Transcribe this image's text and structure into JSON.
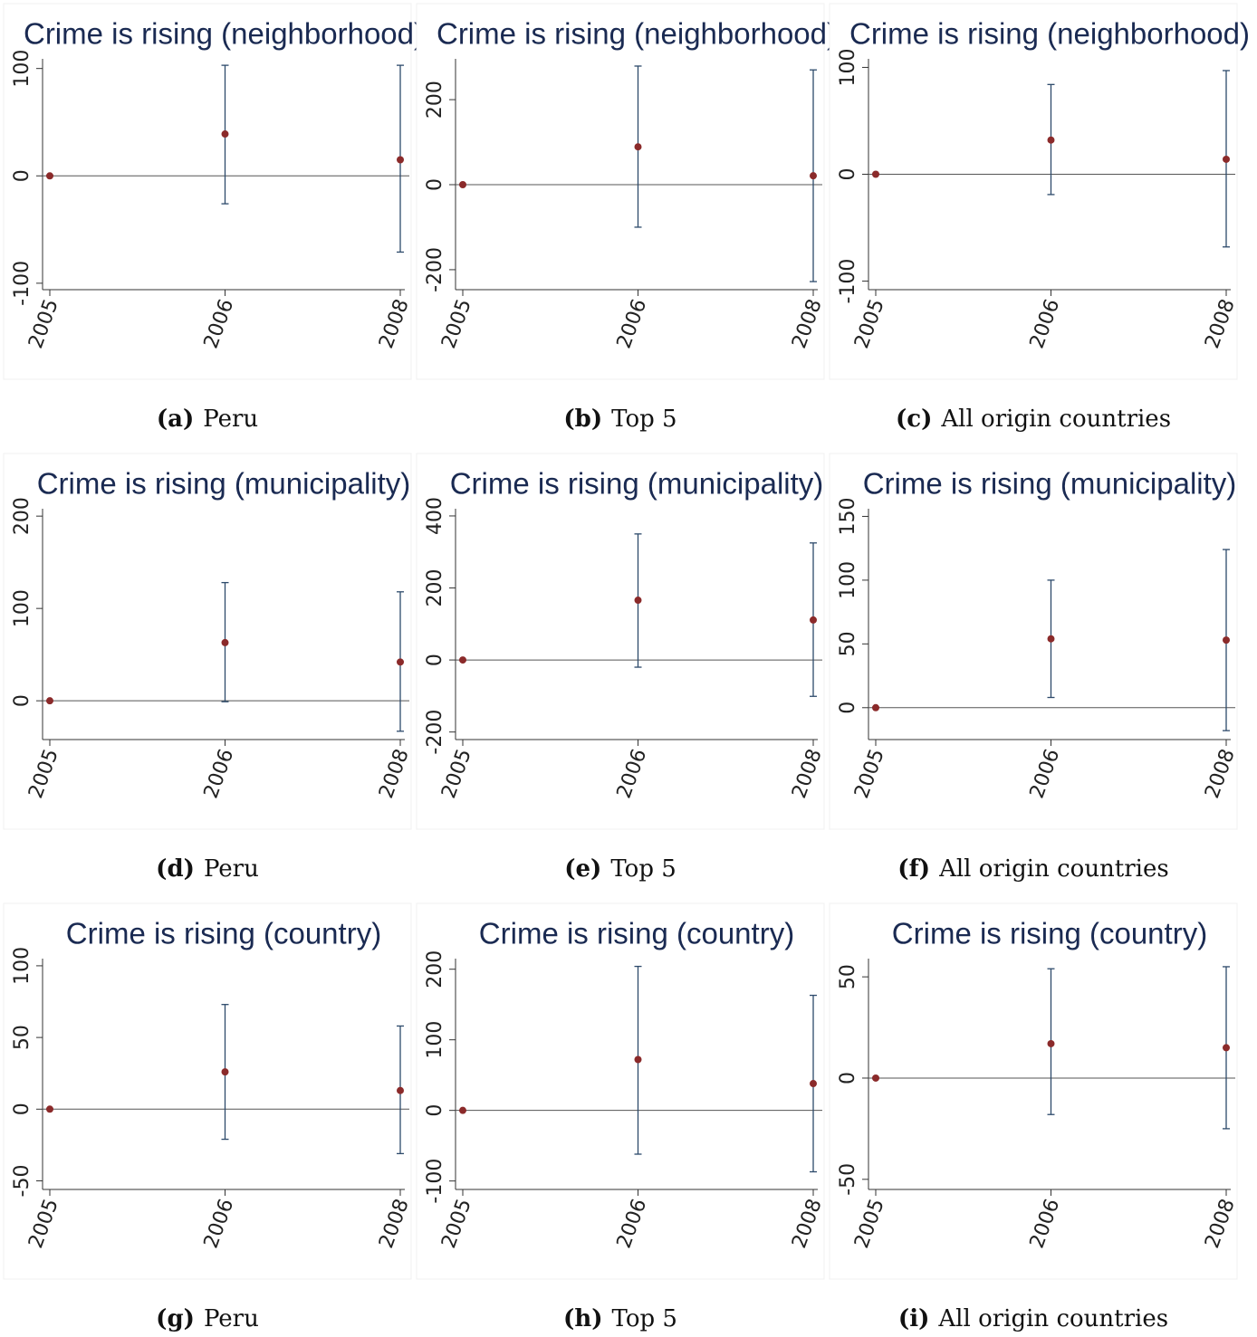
{
  "chart_data": [
    {
      "type": "errorbar",
      "title": "Crime is rising (neighborhood)",
      "caption_label": "(a)",
      "caption": "Peru",
      "categories": [
        "2005",
        "2006",
        "2008"
      ],
      "values": [
        0,
        39,
        15
      ],
      "lower": [
        0,
        -26,
        -71
      ],
      "upper": [
        0,
        103,
        103
      ],
      "ylim": [
        -106,
        109
      ],
      "yticks": [
        -100,
        0,
        100
      ],
      "yline": 0
    },
    {
      "type": "errorbar",
      "title": "Crime is rising (neighborhood)",
      "caption_label": "(b)",
      "caption": "Top 5",
      "categories": [
        "2005",
        "2006",
        "2008"
      ],
      "values": [
        0,
        89,
        21
      ],
      "lower": [
        0,
        -100,
        -228
      ],
      "upper": [
        0,
        279,
        270
      ],
      "ylim": [
        -247,
        296
      ],
      "yticks": [
        -200,
        0,
        200
      ],
      "yline": 0
    },
    {
      "type": "errorbar",
      "title": "Crime is rising (neighborhood)",
      "caption_label": "(c)",
      "caption": "All origin countries",
      "categories": [
        "2005",
        "2006",
        "2008"
      ],
      "values": [
        0,
        32,
        14
      ],
      "lower": [
        0,
        -19,
        -68
      ],
      "upper": [
        0,
        84,
        97
      ],
      "ylim": [
        -108,
        108
      ],
      "yticks": [
        -100,
        0,
        100
      ],
      "yline": 0
    },
    {
      "type": "errorbar",
      "title": "Crime is rising (municipality)",
      "caption_label": "(d)",
      "caption": "Peru",
      "categories": [
        "2005",
        "2006",
        "2008"
      ],
      "values": [
        0,
        63,
        42
      ],
      "lower": [
        0,
        -1,
        -33
      ],
      "upper": [
        0,
        128,
        118
      ],
      "ylim": [
        -42,
        208
      ],
      "yticks": [
        0,
        100,
        200
      ],
      "yline": 0
    },
    {
      "type": "errorbar",
      "title": "Crime is rising (municipality)",
      "caption_label": "(e)",
      "caption": "Top 5",
      "categories": [
        "2005",
        "2006",
        "2008"
      ],
      "values": [
        0,
        166,
        111
      ],
      "lower": [
        0,
        -20,
        -101
      ],
      "upper": [
        0,
        350,
        325
      ],
      "ylim": [
        -221,
        420
      ],
      "yticks": [
        -200,
        0,
        200,
        400
      ],
      "yline": 0
    },
    {
      "type": "errorbar",
      "title": "Crime is rising (municipality)",
      "caption_label": "(f)",
      "caption": "All origin countries",
      "categories": [
        "2005",
        "2006",
        "2008"
      ],
      "values": [
        0,
        54,
        53
      ],
      "lower": [
        0,
        8,
        -18
      ],
      "upper": [
        0,
        100,
        124
      ],
      "ylim": [
        -25,
        156
      ],
      "yticks": [
        0,
        50,
        100,
        150
      ],
      "yline": 0
    },
    {
      "type": "errorbar",
      "title": "Crime is rising (country)",
      "caption_label": "(g)",
      "caption": "Peru",
      "categories": [
        "2005",
        "2006",
        "2008"
      ],
      "values": [
        0,
        26,
        13
      ],
      "lower": [
        0,
        -21,
        -31
      ],
      "upper": [
        0,
        73,
        58
      ],
      "ylim": [
        -56,
        105
      ],
      "yticks": [
        -50,
        0,
        50,
        100
      ],
      "yline": 0
    },
    {
      "type": "errorbar",
      "title": "Crime is rising (country)",
      "caption_label": "(h)",
      "caption": "Top 5",
      "categories": [
        "2005",
        "2006",
        "2008"
      ],
      "values": [
        0,
        72,
        38
      ],
      "lower": [
        0,
        -62,
        -87
      ],
      "upper": [
        0,
        204,
        163
      ],
      "ylim": [
        -112,
        215
      ],
      "yticks": [
        -100,
        0,
        100,
        200
      ],
      "yline": 0
    },
    {
      "type": "errorbar",
      "title": "Crime is rising (country)",
      "caption_label": "(i)",
      "caption": "All origin countries",
      "categories": [
        "2005",
        "2006",
        "2008"
      ],
      "values": [
        0,
        17,
        15
      ],
      "lower": [
        0,
        -18,
        -25
      ],
      "upper": [
        0,
        54,
        55
      ],
      "ylim": [
        -55,
        59
      ],
      "yticks": [
        -50,
        0,
        50
      ],
      "yline": 0
    }
  ]
}
